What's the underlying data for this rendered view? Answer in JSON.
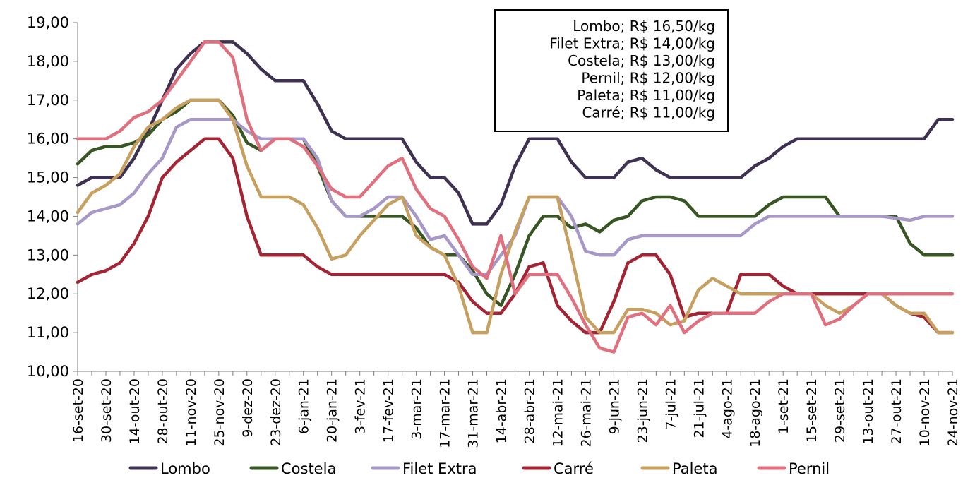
{
  "chart_data": {
    "type": "line",
    "title": "",
    "xlabel": "",
    "ylabel": "",
    "ylim": [
      10,
      19
    ],
    "yticks": [
      "10,00",
      "11,00",
      "12,00",
      "13,00",
      "14,00",
      "15,00",
      "16,00",
      "17,00",
      "18,00",
      "19,00"
    ],
    "x": [
      "16-set-20",
      "23-set-20",
      "30-set-20",
      "7-out-20",
      "14-out-20",
      "21-out-20",
      "28-out-20",
      "4-nov-20",
      "11-nov-20",
      "18-nov-20",
      "25-nov-20",
      "2-dez-20",
      "9-dez-20",
      "16-dez-20",
      "23-dez-20",
      "30-dez-20",
      "6-jan-21",
      "13-jan-21",
      "20-jan-21",
      "27-jan-21",
      "3-fev-21",
      "10-fev-21",
      "17-fev-21",
      "24-fev-21",
      "3-mar-21",
      "10-mar-21",
      "17-mar-21",
      "24-mar-21",
      "31-mar-21",
      "7-abr-21",
      "14-abr-21",
      "21-abr-21",
      "28-abr-21",
      "5-mai-21",
      "12-mai-21",
      "19-mai-21",
      "26-mai-21",
      "2-jun-21",
      "9-jun-21",
      "16-jun-21",
      "23-jun-21",
      "30-jun-21",
      "7-jul-21",
      "14-jul-21",
      "21-jul-21",
      "28-jul-21",
      "4-ago-21",
      "11-ago-21",
      "18-ago-21",
      "25-ago-21",
      "1-set-21",
      "8-set-21",
      "15-set-21",
      "22-set-21",
      "29-set-21",
      "6-out-21",
      "13-out-21",
      "20-out-21",
      "27-out-21",
      "3-nov-21",
      "10-nov-21",
      "17-nov-21",
      "24-nov-21"
    ],
    "x_tick_labels": [
      "16-set-20",
      "30-set-20",
      "14-out-20",
      "28-out-20",
      "11-nov-20",
      "25-nov-20",
      "9-dez-20",
      "23-dez-20",
      "6-jan-21",
      "20-jan-21",
      "3-fev-21",
      "17-fev-21",
      "3-mar-21",
      "17-mar-21",
      "31-mar-21",
      "14-abr-21",
      "28-abr-21",
      "12-mai-21",
      "26-mai-21",
      "9-jun-21",
      "23-jun-21",
      "7-jul-21",
      "21-jul-21",
      "4-ago-21",
      "18-ago-21",
      "1-set-21",
      "15-set-21",
      "29-set-21",
      "13-out-21",
      "27-out-21",
      "10-nov-21",
      "24-nov-21"
    ],
    "series": [
      {
        "name": "Lombo",
        "color": "#3f3151",
        "values": [
          14.8,
          15.0,
          15.0,
          15.0,
          15.5,
          16.2,
          17.0,
          17.8,
          18.2,
          18.5,
          18.5,
          18.5,
          18.2,
          17.8,
          17.5,
          17.5,
          17.5,
          16.9,
          16.2,
          16.0,
          16.0,
          16.0,
          16.0,
          16.0,
          15.4,
          15.0,
          15.0,
          14.6,
          13.8,
          13.8,
          14.3,
          15.3,
          16.0,
          16.0,
          16.0,
          15.4,
          15.0,
          15.0,
          15.0,
          15.4,
          15.5,
          15.2,
          15.0,
          15.0,
          15.0,
          15.0,
          15.0,
          15.0,
          15.3,
          15.5,
          15.8,
          16.0,
          16.0,
          16.0,
          16.0,
          16.0,
          16.0,
          16.0,
          16.0,
          16.0,
          16.0,
          16.5,
          16.5
        ]
      },
      {
        "name": "Costela",
        "color": "#375623",
        "values": [
          15.35,
          15.7,
          15.8,
          15.8,
          15.9,
          16.1,
          16.5,
          16.7,
          17.0,
          17.0,
          17.0,
          16.6,
          15.9,
          15.7,
          16.0,
          16.0,
          16.0,
          15.3,
          14.4,
          14.0,
          14.0,
          14.0,
          14.0,
          14.0,
          13.7,
          13.2,
          13.0,
          13.0,
          12.6,
          12.0,
          11.7,
          12.5,
          13.5,
          14.0,
          14.0,
          13.7,
          13.8,
          13.6,
          13.9,
          14.0,
          14.4,
          14.5,
          14.5,
          14.4,
          14.0,
          14.0,
          14.0,
          14.0,
          14.0,
          14.3,
          14.5,
          14.5,
          14.5,
          14.5,
          14.0,
          14.0,
          14.0,
          14.0,
          14.0,
          13.3,
          13.0,
          13.0,
          13.0
        ]
      },
      {
        "name": "Filet Extra",
        "color": "#a798c8",
        "values": [
          13.8,
          14.1,
          14.2,
          14.3,
          14.6,
          15.1,
          15.5,
          16.3,
          16.5,
          16.5,
          16.5,
          16.5,
          16.2,
          16.0,
          16.0,
          16.0,
          16.0,
          15.5,
          14.4,
          14.0,
          14.0,
          14.2,
          14.5,
          14.5,
          14.0,
          13.4,
          13.5,
          13.0,
          12.5,
          12.5,
          13.0,
          13.5,
          14.5,
          14.5,
          14.5,
          14.0,
          13.1,
          13.0,
          13.0,
          13.4,
          13.5,
          13.5,
          13.5,
          13.5,
          13.5,
          13.5,
          13.5,
          13.5,
          13.8,
          14.0,
          14.0,
          14.0,
          14.0,
          14.0,
          14.0,
          14.0,
          14.0,
          14.0,
          13.95,
          13.9,
          14.0,
          14.0,
          14.0
        ]
      },
      {
        "name": "Carré",
        "color": "#a52434",
        "values": [
          12.3,
          12.5,
          12.6,
          12.8,
          13.3,
          14.0,
          15.0,
          15.4,
          15.7,
          16.0,
          16.0,
          15.5,
          14.0,
          13.0,
          13.0,
          13.0,
          13.0,
          12.7,
          12.5,
          12.5,
          12.5,
          12.5,
          12.5,
          12.5,
          12.5,
          12.5,
          12.5,
          12.3,
          11.8,
          11.5,
          11.5,
          12.0,
          12.7,
          12.8,
          11.7,
          11.3,
          11.0,
          11.0,
          11.8,
          12.8,
          13.0,
          13.0,
          12.5,
          11.4,
          11.5,
          11.5,
          11.5,
          12.5,
          12.5,
          12.5,
          12.2,
          12.0,
          12.0,
          12.0,
          12.0,
          12.0,
          12.0,
          12.0,
          11.7,
          11.5,
          11.4,
          11.0,
          11.0
        ]
      },
      {
        "name": "Paleta",
        "color": "#c7a060",
        "values": [
          14.1,
          14.6,
          14.8,
          15.1,
          15.8,
          16.3,
          16.5,
          16.8,
          17.0,
          17.0,
          17.0,
          16.5,
          15.3,
          14.5,
          14.5,
          14.5,
          14.3,
          13.7,
          12.9,
          13.0,
          13.5,
          13.9,
          14.3,
          14.5,
          13.5,
          13.2,
          13.0,
          12.2,
          11.0,
          11.0,
          12.5,
          13.6,
          14.5,
          14.5,
          14.5,
          13.0,
          11.4,
          11.0,
          11.0,
          11.6,
          11.6,
          11.5,
          11.2,
          11.3,
          12.1,
          12.4,
          12.2,
          12.0,
          12.0,
          12.0,
          12.0,
          12.0,
          12.0,
          11.7,
          11.5,
          11.7,
          12.0,
          12.0,
          11.7,
          11.5,
          11.5,
          11.0,
          11.0
        ]
      },
      {
        "name": "Pernil",
        "color": "#e0707e",
        "values": [
          16.0,
          16.0,
          16.0,
          16.2,
          16.55,
          16.7,
          17.0,
          17.5,
          18.0,
          18.5,
          18.5,
          18.1,
          16.5,
          15.7,
          16.0,
          16.0,
          15.8,
          15.3,
          14.7,
          14.5,
          14.5,
          14.9,
          15.3,
          15.5,
          14.7,
          14.2,
          14.0,
          13.4,
          12.7,
          12.4,
          13.5,
          12.0,
          12.5,
          12.5,
          12.5,
          11.9,
          11.2,
          10.6,
          10.5,
          11.4,
          11.5,
          11.2,
          11.7,
          11.0,
          11.3,
          11.5,
          11.5,
          11.5,
          11.5,
          11.8,
          12.0,
          12.0,
          12.0,
          11.2,
          11.35,
          11.7,
          12.0,
          12.0,
          12.0,
          12.0,
          12.0,
          12.0,
          12.0
        ]
      }
    ],
    "annotation": [
      "Lombo; R$ 16,50/kg",
      "Filet Extra; R$ 14,00/kg",
      "Costela; R$ 13,00/kg",
      "Pernil; R$ 12,00/kg",
      "Paleta; R$ 11,00/kg",
      "Carré; R$ 11,00/kg"
    ],
    "grid": false,
    "legend_position": "bottom"
  }
}
